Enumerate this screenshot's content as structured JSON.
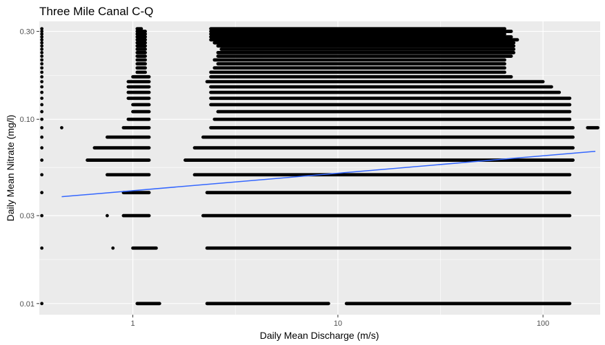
{
  "chart_data": {
    "type": "scatter",
    "title": "Three Mile Canal C-Q",
    "xlabel": "Daily Mean Discharge (m/s)",
    "ylabel": "Daily Mean Nitrate (mg/l)",
    "x_scale": "log10",
    "y_scale": "log10",
    "xlim": [
      0.35,
      190
    ],
    "ylim": [
      0.0087,
      0.34
    ],
    "x_ticks": [
      {
        "value": 1,
        "label": "1"
      },
      {
        "value": 10,
        "label": "10"
      },
      {
        "value": 100,
        "label": "100"
      }
    ],
    "y_ticks": [
      {
        "value": 0.01,
        "label": "0.01"
      },
      {
        "value": 0.03,
        "label": "0.03"
      },
      {
        "value": 0.1,
        "label": "0.10"
      },
      {
        "value": 0.3,
        "label": "0.30"
      }
    ],
    "grid": true,
    "legend": "none",
    "colors": {
      "panel": "#ebebeb",
      "grid": "#ffffff",
      "points": "#000000",
      "trend": "#3366ff"
    },
    "trend_line": {
      "x": [
        0.45,
        180
      ],
      "y": [
        0.038,
        0.067
      ]
    },
    "point_bands": [
      {
        "y": 0.01,
        "segments": [
          [
            0.36,
            0.36
          ],
          [
            1.05,
            1.35
          ],
          [
            2.3,
            9.0
          ],
          [
            11,
            135
          ]
        ]
      },
      {
        "y": 0.02,
        "segments": [
          [
            0.36,
            0.36
          ],
          [
            0.8,
            0.8
          ],
          [
            1.0,
            1.3
          ],
          [
            2.3,
            135
          ]
        ]
      },
      {
        "y": 0.03,
        "segments": [
          [
            0.36,
            0.36
          ],
          [
            0.75,
            0.75
          ],
          [
            0.9,
            1.2
          ],
          [
            2.2,
            135
          ]
        ]
      },
      {
        "y": 0.04,
        "segments": [
          [
            0.36,
            0.36
          ],
          [
            0.9,
            1.2
          ],
          [
            2.3,
            135
          ]
        ]
      },
      {
        "y": 0.05,
        "segments": [
          [
            0.36,
            0.36
          ],
          [
            0.75,
            1.2
          ],
          [
            2.0,
            135
          ]
        ]
      },
      {
        "y": 0.06,
        "segments": [
          [
            0.36,
            0.36
          ],
          [
            0.6,
            1.2
          ],
          [
            1.8,
            140
          ]
        ]
      },
      {
        "y": 0.07,
        "segments": [
          [
            0.36,
            0.36
          ],
          [
            0.65,
            1.2
          ],
          [
            2.0,
            140
          ]
        ]
      },
      {
        "y": 0.08,
        "segments": [
          [
            0.36,
            0.36
          ],
          [
            0.75,
            1.2
          ],
          [
            2.2,
            140
          ]
        ]
      },
      {
        "y": 0.09,
        "segments": [
          [
            0.36,
            0.36
          ],
          [
            0.45,
            0.45
          ],
          [
            0.9,
            1.2
          ],
          [
            2.4,
            140
          ],
          [
            165,
            185
          ]
        ]
      },
      {
        "y": 0.1,
        "segments": [
          [
            0.36,
            0.36
          ],
          [
            0.95,
            1.2
          ],
          [
            2.5,
            135
          ]
        ]
      },
      {
        "y": 0.11,
        "segments": [
          [
            0.36,
            0.36
          ],
          [
            1.0,
            1.2
          ],
          [
            2.6,
            135
          ]
        ]
      },
      {
        "y": 0.12,
        "segments": [
          [
            0.36,
            0.36
          ],
          [
            1.0,
            1.2
          ],
          [
            2.4,
            135
          ]
        ]
      },
      {
        "y": 0.13,
        "segments": [
          [
            0.36,
            0.36
          ],
          [
            0.95,
            1.2
          ],
          [
            2.4,
            135
          ]
        ]
      },
      {
        "y": 0.14,
        "segments": [
          [
            0.36,
            0.36
          ],
          [
            0.95,
            1.2
          ],
          [
            2.4,
            120
          ]
        ]
      },
      {
        "y": 0.15,
        "segments": [
          [
            0.36,
            0.36
          ],
          [
            0.95,
            1.2
          ],
          [
            2.4,
            110
          ]
        ]
      },
      {
        "y": 0.16,
        "segments": [
          [
            0.36,
            0.36
          ],
          [
            0.95,
            1.2
          ],
          [
            2.3,
            100
          ]
        ]
      },
      {
        "y": 0.17,
        "segments": [
          [
            0.36,
            0.36
          ],
          [
            1.0,
            1.2
          ],
          [
            2.4,
            70
          ]
        ]
      },
      {
        "y": 0.18,
        "segments": [
          [
            0.36,
            0.36
          ],
          [
            1.05,
            1.15
          ],
          [
            2.4,
            65
          ]
        ]
      },
      {
        "y": 0.19,
        "segments": [
          [
            0.36,
            0.36
          ],
          [
            1.05,
            1.15
          ],
          [
            2.5,
            65
          ]
        ]
      },
      {
        "y": 0.2,
        "segments": [
          [
            0.36,
            0.36
          ],
          [
            1.05,
            1.15
          ],
          [
            2.6,
            65
          ]
        ]
      },
      {
        "y": 0.21,
        "segments": [
          [
            0.36,
            0.36
          ],
          [
            1.05,
            1.15
          ],
          [
            2.5,
            65
          ]
        ]
      },
      {
        "y": 0.22,
        "segments": [
          [
            0.36,
            0.36
          ],
          [
            1.05,
            1.15
          ],
          [
            2.6,
            70
          ]
        ]
      },
      {
        "y": 0.23,
        "segments": [
          [
            0.36,
            0.36
          ],
          [
            1.05,
            1.15
          ],
          [
            2.6,
            72
          ]
        ]
      },
      {
        "y": 0.24,
        "segments": [
          [
            0.36,
            0.36
          ],
          [
            1.05,
            1.15
          ],
          [
            2.7,
            72
          ]
        ]
      },
      {
        "y": 0.25,
        "segments": [
          [
            0.36,
            0.36
          ],
          [
            1.05,
            1.15
          ],
          [
            2.6,
            72
          ]
        ]
      },
      {
        "y": 0.26,
        "segments": [
          [
            0.36,
            0.36
          ],
          [
            1.05,
            1.15
          ],
          [
            2.5,
            72
          ]
        ]
      },
      {
        "y": 0.27,
        "segments": [
          [
            0.36,
            0.36
          ],
          [
            1.05,
            1.15
          ],
          [
            2.4,
            75
          ]
        ]
      },
      {
        "y": 0.28,
        "segments": [
          [
            0.36,
            0.36
          ],
          [
            1.05,
            1.15
          ],
          [
            2.4,
            70
          ]
        ]
      },
      {
        "y": 0.29,
        "segments": [
          [
            0.36,
            0.36
          ],
          [
            1.05,
            1.15
          ],
          [
            2.4,
            65
          ]
        ]
      },
      {
        "y": 0.3,
        "segments": [
          [
            0.36,
            0.36
          ],
          [
            1.05,
            1.15
          ],
          [
            2.4,
            70
          ]
        ]
      },
      {
        "y": 0.31,
        "segments": [
          [
            0.36,
            0.36
          ],
          [
            1.05,
            1.1
          ],
          [
            2.4,
            65
          ]
        ]
      }
    ]
  }
}
